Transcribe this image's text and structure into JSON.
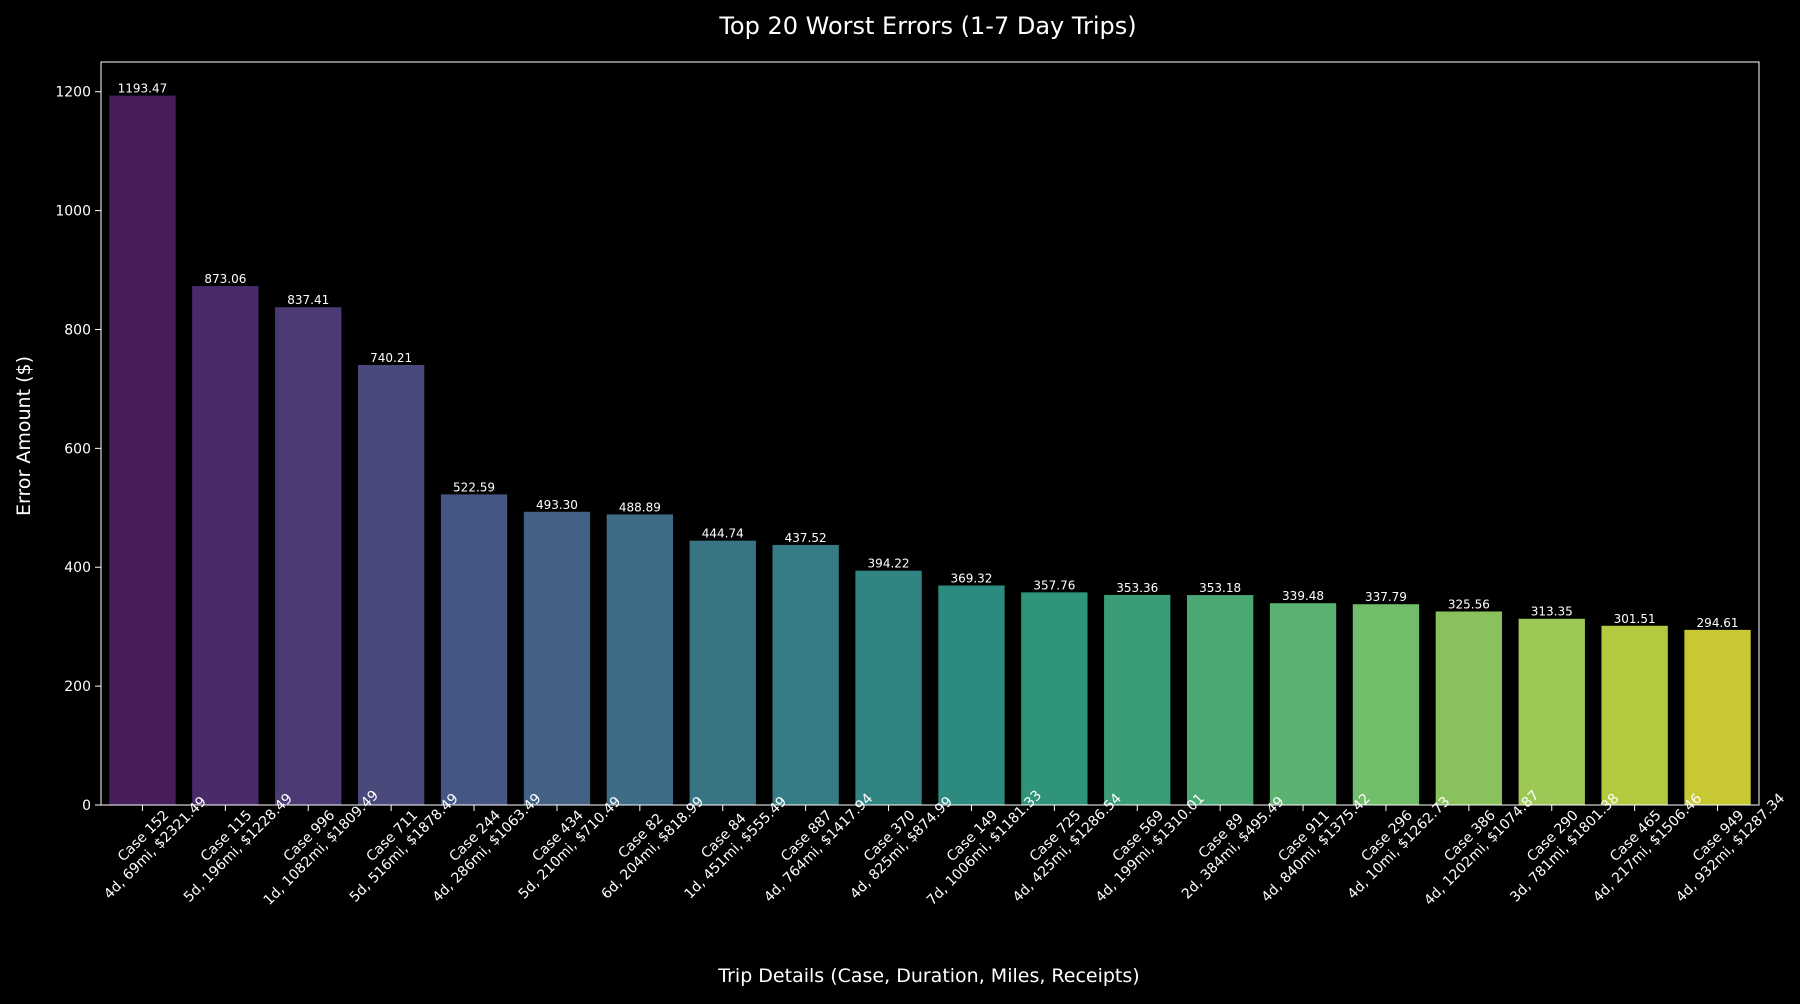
{
  "chart_data": {
    "type": "bar",
    "title": "Top 20 Worst Errors (1-7 Day Trips)",
    "xlabel": "Trip Details (Case, Duration, Miles, Receipts)",
    "ylabel": "Error Amount ($)",
    "ylim": [
      0,
      1250
    ],
    "yticks": [
      0,
      200,
      400,
      600,
      800,
      1000,
      1200
    ],
    "grid": false,
    "background": "#000000",
    "text_color": "#ffffff",
    "categories": [
      [
        "Case 152",
        "4d, 69mi, $2321.49"
      ],
      [
        "Case 115",
        "5d, 196mi, $1228.49"
      ],
      [
        "Case 996",
        "1d, 1082mi, $1809.49"
      ],
      [
        "Case 711",
        "5d, 516mi, $1878.49"
      ],
      [
        "Case 244",
        "4d, 286mi, $1063.49"
      ],
      [
        "Case 434",
        "5d, 210mi, $710.49"
      ],
      [
        "Case 82",
        "6d, 204mi, $818.99"
      ],
      [
        "Case 84",
        "1d, 451mi, $555.49"
      ],
      [
        "Case 887",
        "4d, 764mi, $1417.94"
      ],
      [
        "Case 370",
        "4d, 825mi, $874.99"
      ],
      [
        "Case 149",
        "7d, 1006mi, $1181.33"
      ],
      [
        "Case 725",
        "4d, 425mi, $1286.54"
      ],
      [
        "Case 569",
        "4d, 199mi, $1310.01"
      ],
      [
        "Case 89",
        "2d, 384mi, $495.49"
      ],
      [
        "Case 911",
        "4d, 840mi, $1375.42"
      ],
      [
        "Case 296",
        "4d, 10mi, $1262.73"
      ],
      [
        "Case 386",
        "4d, 1202mi, $1074.87"
      ],
      [
        "Case 290",
        "3d, 781mi, $1801.38"
      ],
      [
        "Case 465",
        "4d, 217mi, $1506.46"
      ],
      [
        "Case 949",
        "4d, 932mi, $1287.34"
      ]
    ],
    "values": [
      1193.47,
      873.06,
      837.41,
      740.21,
      522.59,
      493.3,
      488.89,
      444.74,
      437.52,
      394.22,
      369.32,
      357.76,
      353.36,
      353.18,
      339.48,
      337.79,
      325.56,
      313.35,
      301.51,
      294.61
    ],
    "value_labels": [
      "1193.47",
      "873.06",
      "837.41",
      "740.21",
      "522.59",
      "493.30",
      "488.89",
      "444.74",
      "437.52",
      "394.22",
      "369.32",
      "357.76",
      "353.36",
      "353.18",
      "339.48",
      "337.79",
      "325.56",
      "313.35",
      "301.51",
      "294.61"
    ],
    "colors": [
      "#471d5c",
      "#4a2b6a",
      "#4b3a74",
      "#49497c",
      "#465683",
      "#426185",
      "#3e6b86",
      "#397485",
      "#357c84",
      "#308582",
      "#2c8b7e",
      "#2f947a",
      "#3a9d78",
      "#4aa874",
      "#5bb16f",
      "#72bd69",
      "#89c15d",
      "#9ec855",
      "#b3ca40",
      "#c8c832"
    ]
  }
}
